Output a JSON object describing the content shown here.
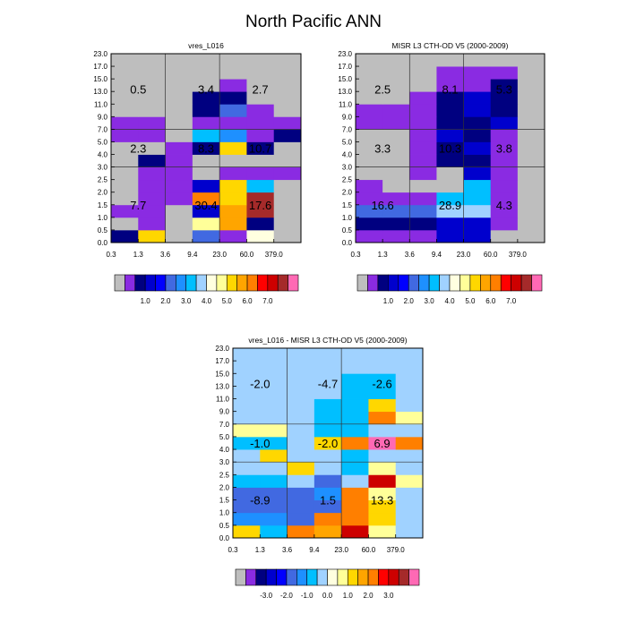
{
  "main_title": "North Pacific ANN",
  "chart_data": [
    {
      "type": "heatmap",
      "title": "vres_L016",
      "x_ticks": [
        "0.3",
        "1.3",
        "3.6",
        "9.4",
        "23.0",
        "60.0",
        "379.0"
      ],
      "y_ticks": [
        "0.0",
        "0.5",
        "1.0",
        "1.5",
        "2.0",
        "2.5",
        "3.0",
        "4.0",
        "5.0",
        "7.0",
        "9.0",
        "11.0",
        "13.0",
        "15.0",
        "17.0",
        "23.0"
      ],
      "cells": [
        [
          2,
          11,
          0,
          5,
          1,
          9,
          0
        ],
        [
          0,
          1,
          0,
          10,
          12,
          2,
          0
        ],
        [
          1,
          1,
          0,
          3,
          12,
          16,
          0
        ],
        [
          0,
          1,
          1,
          13,
          11,
          16,
          0
        ],
        [
          0,
          1,
          1,
          3,
          11,
          7,
          0
        ],
        [
          0,
          1,
          1,
          0,
          1,
          1,
          1
        ],
        [
          0,
          2,
          1,
          0,
          0,
          0,
          0
        ],
        [
          0,
          0,
          1,
          2,
          11,
          2,
          0
        ],
        [
          1,
          1,
          0,
          7,
          6,
          1,
          2
        ],
        [
          1,
          1,
          0,
          1,
          1,
          1,
          1
        ],
        [
          0,
          0,
          0,
          2,
          5,
          1,
          0
        ],
        [
          0,
          0,
          0,
          2,
          2,
          0,
          0
        ],
        [
          0,
          0,
          0,
          0,
          1,
          0,
          0
        ],
        [
          0,
          0,
          0,
          0,
          0,
          0,
          0
        ],
        [
          0,
          0,
          0,
          0,
          0,
          0,
          0
        ]
      ],
      "annotations": [
        {
          "text": "0.5",
          "col": 1.0,
          "row": 12.2
        },
        {
          "text": "3.4",
          "col": 3.5,
          "row": 12.2
        },
        {
          "text": "2.7",
          "col": 5.5,
          "row": 12.2
        },
        {
          "text": "2.3",
          "col": 1.0,
          "row": 7.5
        },
        {
          "text": "8.3",
          "col": 3.5,
          "row": 7.5
        },
        {
          "text": "10.7",
          "col": 5.5,
          "row": 7.5
        },
        {
          "text": "7.7",
          "col": 1.0,
          "row": 3.0
        },
        {
          "text": "30.4",
          "col": 3.5,
          "row": 3.0
        },
        {
          "text": "17.6",
          "col": 5.5,
          "row": 3.0
        }
      ],
      "colorbar": {
        "colors": [
          "#bebebe",
          "#8a2be2",
          "#000080",
          "#0000cd",
          "#0000ff",
          "#4169e1",
          "#1e90ff",
          "#00bfff",
          "#a0d2ff",
          "#ffffe0",
          "#ffff99",
          "#ffd700",
          "#ffa500",
          "#ff7f00",
          "#ff0000",
          "#cd0000",
          "#a52a2a",
          "#ff69b4"
        ],
        "labels": [
          "1.0",
          "2.0",
          "3.0",
          "4.0",
          "5.0",
          "6.0",
          "7.0"
        ]
      }
    },
    {
      "type": "heatmap",
      "title": "MISR L3 CTH-OD V5 (2000-2009)",
      "x_ticks": [
        "0.3",
        "1.3",
        "3.6",
        "9.4",
        "23.0",
        "60.0",
        "379.0"
      ],
      "y_ticks": [
        "0.0",
        "0.5",
        "1.0",
        "1.5",
        "2.0",
        "2.5",
        "3.0",
        "4.0",
        "5.0",
        "7.0",
        "9.0",
        "11.0",
        "13.0",
        "15.0",
        "17.0",
        "23.0"
      ],
      "cells": [
        [
          1,
          1,
          1,
          3,
          3,
          0,
          0
        ],
        [
          2,
          2,
          2,
          3,
          3,
          1,
          0
        ],
        [
          5,
          5,
          5,
          8,
          8,
          1,
          0
        ],
        [
          1,
          1,
          1,
          7,
          7,
          1,
          0
        ],
        [
          1,
          0,
          0,
          0,
          7,
          1,
          0
        ],
        [
          0,
          0,
          1,
          0,
          3,
          1,
          0
        ],
        [
          0,
          0,
          1,
          2,
          2,
          1,
          0
        ],
        [
          0,
          0,
          1,
          2,
          3,
          1,
          0
        ],
        [
          0,
          0,
          1,
          3,
          2,
          1,
          0
        ],
        [
          1,
          1,
          1,
          2,
          2,
          3,
          0
        ],
        [
          1,
          1,
          1,
          2,
          3,
          2,
          0
        ],
        [
          0,
          0,
          1,
          2,
          3,
          2,
          0
        ],
        [
          0,
          0,
          0,
          1,
          1,
          2,
          0
        ],
        [
          0,
          0,
          0,
          1,
          1,
          1,
          0
        ],
        [
          0,
          0,
          0,
          0,
          0,
          0,
          0
        ]
      ],
      "annotations": [
        {
          "text": "2.5",
          "col": 1.0,
          "row": 12.2
        },
        {
          "text": "8.1",
          "col": 3.5,
          "row": 12.2
        },
        {
          "text": "5.3",
          "col": 5.5,
          "row": 12.2
        },
        {
          "text": "3.3",
          "col": 1.0,
          "row": 7.5
        },
        {
          "text": "10.3",
          "col": 3.5,
          "row": 7.5
        },
        {
          "text": "3.8",
          "col": 5.5,
          "row": 7.5
        },
        {
          "text": "16.6",
          "col": 1.0,
          "row": 3.0
        },
        {
          "text": "28.9",
          "col": 3.5,
          "row": 3.0
        },
        {
          "text": "4.3",
          "col": 5.5,
          "row": 3.0
        }
      ],
      "colorbar": {
        "colors": [
          "#bebebe",
          "#8a2be2",
          "#000080",
          "#0000cd",
          "#0000ff",
          "#4169e1",
          "#1e90ff",
          "#00bfff",
          "#a0d2ff",
          "#ffffe0",
          "#ffff99",
          "#ffd700",
          "#ffa500",
          "#ff7f00",
          "#ff0000",
          "#cd0000",
          "#a52a2a",
          "#ff69b4"
        ],
        "labels": [
          "1.0",
          "2.0",
          "3.0",
          "4.0",
          "5.0",
          "6.0",
          "7.0"
        ]
      }
    },
    {
      "type": "heatmap",
      "title": "vres_L016 - MISR L3 CTH-OD V5 (2000-2009)",
      "x_ticks": [
        "0.3",
        "1.3",
        "3.6",
        "9.4",
        "23.0",
        "60.0",
        "379.0"
      ],
      "y_ticks": [
        "0.0",
        "0.5",
        "1.0",
        "1.5",
        "2.0",
        "2.5",
        "3.0",
        "4.0",
        "5.0",
        "7.0",
        "9.0",
        "11.0",
        "13.0",
        "15.0",
        "17.0",
        "23.0"
      ],
      "cells": [
        [
          11,
          7,
          13,
          12,
          15,
          10,
          8
        ],
        [
          6,
          6,
          5,
          13,
          13,
          11,
          8
        ],
        [
          5,
          5,
          5,
          5,
          13,
          11,
          8
        ],
        [
          5,
          5,
          5,
          6,
          13,
          10,
          8
        ],
        [
          7,
          7,
          8,
          5,
          8,
          15,
          10
        ],
        [
          8,
          8,
          11,
          8,
          7,
          10,
          8
        ],
        [
          8,
          11,
          8,
          8,
          7,
          8,
          8
        ],
        [
          7,
          7,
          8,
          11,
          13,
          17,
          13
        ],
        [
          10,
          10,
          8,
          7,
          7,
          8,
          8
        ],
        [
          8,
          8,
          8,
          7,
          7,
          13,
          10
        ],
        [
          8,
          8,
          8,
          7,
          7,
          11,
          8
        ],
        [
          8,
          8,
          8,
          8,
          7,
          7,
          8
        ],
        [
          8,
          8,
          8,
          8,
          7,
          7,
          8
        ],
        [
          8,
          8,
          8,
          8,
          8,
          8,
          8
        ],
        [
          8,
          8,
          8,
          8,
          8,
          8,
          8
        ]
      ],
      "annotations": [
        {
          "text": "-2.0",
          "col": 1.0,
          "row": 12.2
        },
        {
          "text": "-4.7",
          "col": 3.5,
          "row": 12.2
        },
        {
          "text": "-2.6",
          "col": 5.5,
          "row": 12.2
        },
        {
          "text": "-1.0",
          "col": 1.0,
          "row": 7.5
        },
        {
          "text": "-2.0",
          "col": 3.5,
          "row": 7.5
        },
        {
          "text": "6.9",
          "col": 5.5,
          "row": 7.5
        },
        {
          "text": "-8.9",
          "col": 1.0,
          "row": 3.0
        },
        {
          "text": "1.5",
          "col": 3.5,
          "row": 3.0
        },
        {
          "text": "13.3",
          "col": 5.5,
          "row": 3.0
        }
      ],
      "colorbar": {
        "colors": [
          "#bebebe",
          "#8a2be2",
          "#000080",
          "#0000cd",
          "#0000ff",
          "#4169e1",
          "#1e90ff",
          "#00bfff",
          "#a0d2ff",
          "#ffffe0",
          "#ffff99",
          "#ffd700",
          "#ffa500",
          "#ff7f00",
          "#ff0000",
          "#cd0000",
          "#a52a2a",
          "#ff69b4"
        ],
        "labels": [
          "-3.0",
          "-2.0",
          "-1.0",
          "0.0",
          "1.0",
          "2.0",
          "3.0"
        ]
      }
    }
  ]
}
